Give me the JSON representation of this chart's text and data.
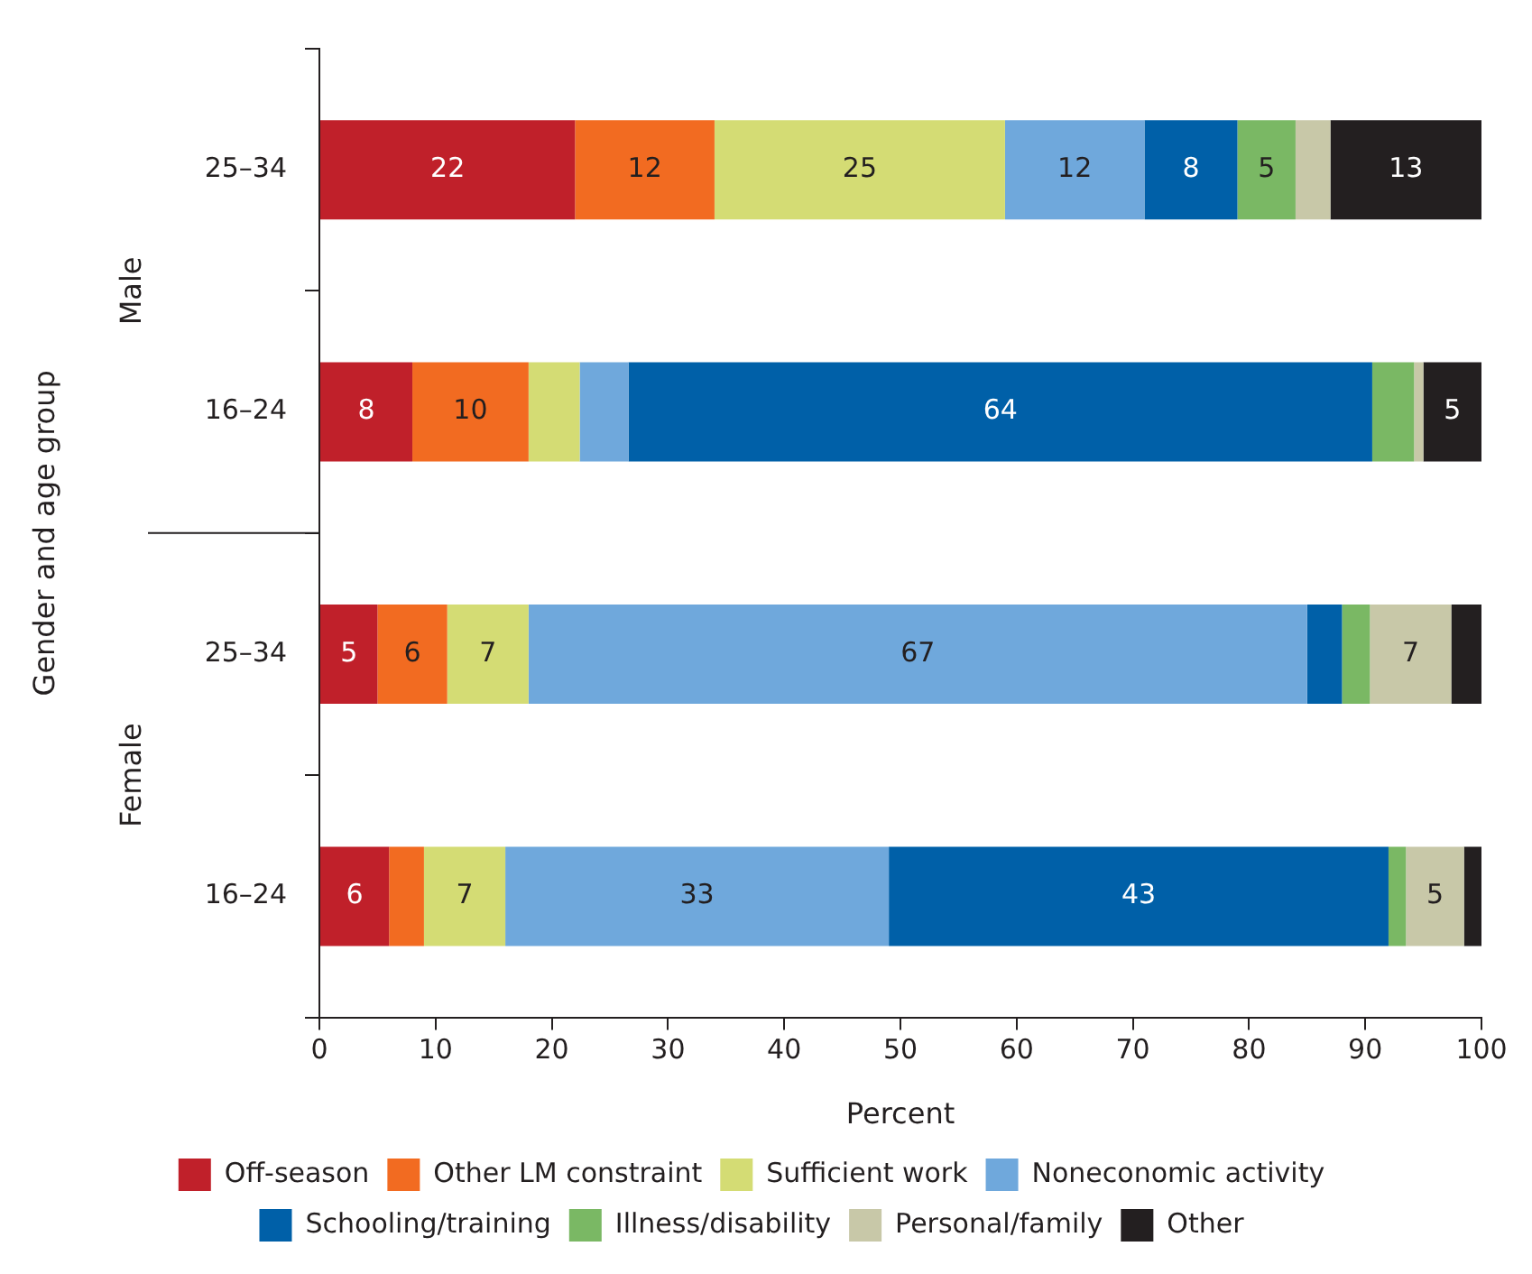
{
  "chart_data": {
    "type": "bar",
    "orientation": "horizontal",
    "stacked": true,
    "xlabel": "Percent",
    "ylabel": "Gender and age group",
    "categories": [
      "25–34",
      "16–24",
      "25–34",
      "16–24"
    ],
    "annotations": [
      "Male",
      "Female"
    ],
    "series": [
      {
        "name": "Off-season",
        "color": "#c0202a",
        "values": [
          22,
          8,
          5,
          6
        ],
        "value_labels": [
          "22",
          "8",
          "5",
          "6"
        ]
      },
      {
        "name": "Other LM constraint",
        "color": "#f26b21",
        "values": [
          12,
          10,
          6,
          3
        ],
        "value_labels": [
          "12",
          "10",
          "6",
          null
        ]
      },
      {
        "name": "Sufficient work",
        "color": "#d4dc74",
        "values": [
          25,
          4.4,
          7,
          7
        ],
        "value_labels": [
          "25",
          null,
          "7",
          "7"
        ]
      },
      {
        "name": "Noneconomic activity",
        "color": "#6fa8dc",
        "values": [
          12,
          4.2,
          67,
          33
        ],
        "value_labels": [
          "12",
          null,
          "67",
          "33"
        ]
      },
      {
        "name": "Schooling/training",
        "color": "#0060a8",
        "values": [
          8,
          64,
          3,
          43
        ],
        "value_labels": [
          "8",
          "64",
          null,
          "43"
        ]
      },
      {
        "name": "Illness/disability",
        "color": "#7ab864",
        "values": [
          5,
          3.6,
          2.4,
          1.5
        ],
        "value_labels": [
          "5",
          null,
          null,
          null
        ]
      },
      {
        "name": "Personal/family",
        "color": "#c8c8a8",
        "values": [
          3,
          0.8,
          7,
          5
        ],
        "value_labels": [
          null,
          null,
          "7",
          "5"
        ]
      },
      {
        "name": "Other",
        "color": "#231f20",
        "values": [
          13,
          5,
          2.6,
          1.5
        ],
        "value_labels": [
          "13",
          "5",
          null,
          null
        ]
      }
    ],
    "xlim": [
      0,
      100
    ],
    "xticks": [
      0,
      10,
      20,
      30,
      40,
      50,
      60,
      70,
      80,
      90,
      100
    ],
    "grid": false,
    "legend": "bottom"
  }
}
